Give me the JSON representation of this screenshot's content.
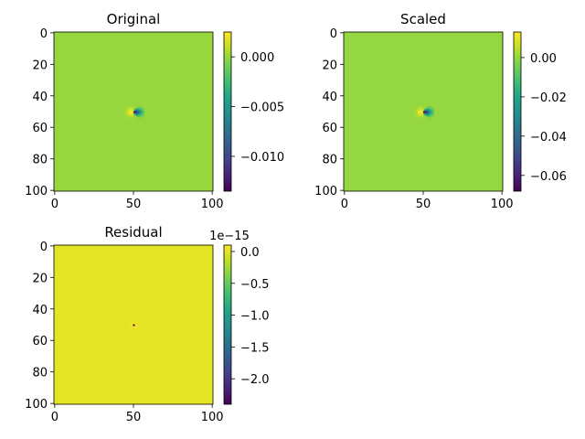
{
  "chart_data": [
    {
      "type": "heatmap",
      "title": "Original",
      "x_ticks": [
        0,
        50,
        100
      ],
      "y_ticks": [
        0,
        20,
        40,
        60,
        80,
        100
      ],
      "x_extent": [
        -0.5,
        100.5
      ],
      "y_extent": [
        100.5,
        -0.5
      ],
      "colormap": "viridis",
      "background_value": 0.0,
      "colorbar": {
        "range": [
          -0.0135,
          0.0025
        ],
        "ticks": [
          0.0,
          -0.005,
          -0.01
        ],
        "tick_labels": [
          "0.000",
          "−0.005",
          "−0.010"
        ],
        "offset_text": ""
      },
      "feature": {
        "center": [
          50,
          50
        ],
        "positive_peak": 0.0025,
        "negative_peak": -0.0135,
        "description_radius": 7
      }
    },
    {
      "type": "heatmap",
      "title": "Scaled",
      "x_ticks": [
        0,
        50,
        100
      ],
      "y_ticks": [
        0,
        20,
        40,
        60,
        80,
        100
      ],
      "x_extent": [
        -0.5,
        100.5
      ],
      "y_extent": [
        100.5,
        -0.5
      ],
      "colormap": "viridis",
      "background_value": 0.0,
      "colorbar": {
        "range": [
          -0.068,
          0.013
        ],
        "ticks": [
          0.0,
          -0.02,
          -0.04,
          -0.06
        ],
        "tick_labels": [
          "0.00",
          "−0.02",
          "−0.04",
          "−0.06"
        ],
        "offset_text": ""
      },
      "feature": {
        "center": [
          50,
          50
        ],
        "positive_peak": 0.013,
        "negative_peak": -0.068,
        "description_radius": 7
      }
    },
    {
      "type": "heatmap",
      "title": "Residual",
      "x_ticks": [
        0,
        50,
        100
      ],
      "y_ticks": [
        0,
        20,
        40,
        60,
        80,
        100
      ],
      "x_extent": [
        -0.5,
        100.5
      ],
      "y_extent": [
        100.5,
        -0.5
      ],
      "colormap": "viridis",
      "background_value": 0.0,
      "colorbar": {
        "range": [
          -2.4,
          0.1
        ],
        "ticks": [
          0.0,
          -0.5,
          -1.0,
          -1.5,
          -2.0
        ],
        "tick_labels": [
          "0.0",
          "−0.5",
          "−1.0",
          "−1.5",
          "−2.0"
        ],
        "offset_text": "1e−15"
      },
      "feature": {
        "center": [
          50,
          50
        ],
        "positive_peak": 0.05,
        "negative_peak": -2.4,
        "description_radius": 6
      }
    }
  ]
}
